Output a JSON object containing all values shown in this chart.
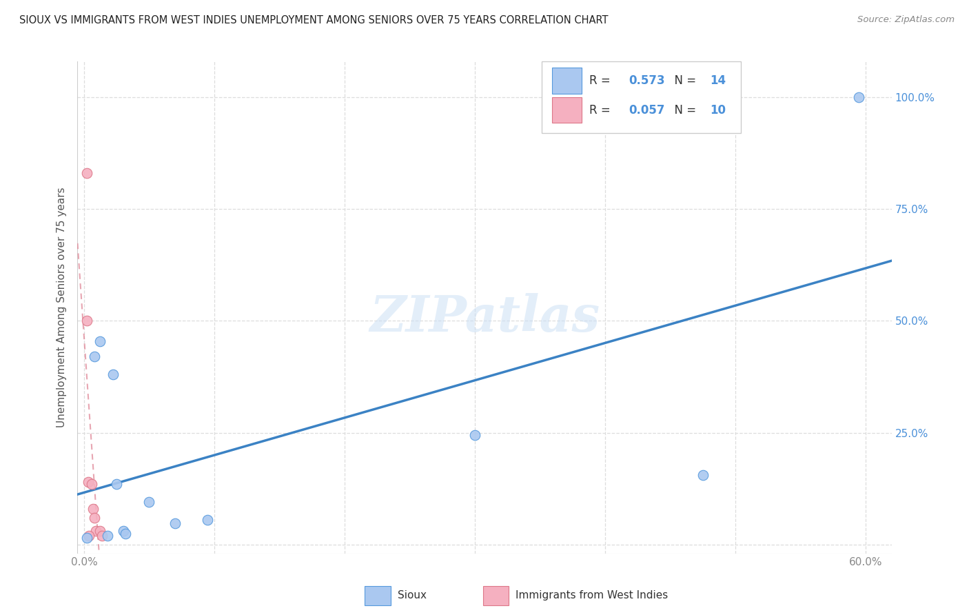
{
  "title": "SIOUX VS IMMIGRANTS FROM WEST INDIES UNEMPLOYMENT AMONG SENIORS OVER 75 YEARS CORRELATION CHART",
  "source": "Source: ZipAtlas.com",
  "ylabel": "Unemployment Among Seniors over 75 years",
  "xlim": [
    -0.005,
    0.62
  ],
  "ylim": [
    -0.02,
    1.08
  ],
  "xticks": [
    0.0,
    0.1,
    0.2,
    0.3,
    0.4,
    0.5,
    0.6
  ],
  "xticklabels": [
    "0.0%",
    "",
    "",
    "",
    "",
    "",
    "60.0%"
  ],
  "yticks": [
    0.0,
    0.25,
    0.5,
    0.75,
    1.0
  ],
  "yticklabels_left": [
    "",
    "",
    "",
    "",
    ""
  ],
  "yticklabels_right": [
    "",
    "25.0%",
    "50.0%",
    "75.0%",
    "100.0%"
  ],
  "sioux_x": [
    0.002,
    0.008,
    0.012,
    0.018,
    0.022,
    0.025,
    0.03,
    0.032,
    0.05,
    0.07,
    0.095,
    0.3,
    0.475,
    0.595
  ],
  "sioux_y": [
    0.015,
    0.42,
    0.455,
    0.02,
    0.38,
    0.135,
    0.03,
    0.025,
    0.095,
    0.048,
    0.055,
    0.245,
    0.155,
    1.0
  ],
  "west_x": [
    0.002,
    0.002,
    0.003,
    0.006,
    0.007,
    0.008,
    0.009,
    0.012,
    0.014,
    0.004
  ],
  "west_y": [
    0.83,
    0.5,
    0.14,
    0.135,
    0.08,
    0.06,
    0.03,
    0.03,
    0.02,
    0.02
  ],
  "sioux_color": "#aac8f0",
  "west_color": "#f5b0c0",
  "sioux_edge": "#5599dd",
  "west_edge": "#dd7788",
  "trend_sioux_color": "#3b82c4",
  "trend_west_color": "#e08898",
  "sioux_R": "0.573",
  "sioux_N": "14",
  "west_R": "0.057",
  "west_N": "10",
  "legend_label_sioux": "Sioux",
  "legend_label_west": "Immigrants from West Indies",
  "watermark": "ZIPatlas",
  "background_color": "#ffffff",
  "title_color": "#222222",
  "source_color": "#888888",
  "axis_label_color": "#555555",
  "right_tick_color": "#4a90d9",
  "left_tick_color": "#888888",
  "grid_color": "#dddddd",
  "marker_size": 110
}
